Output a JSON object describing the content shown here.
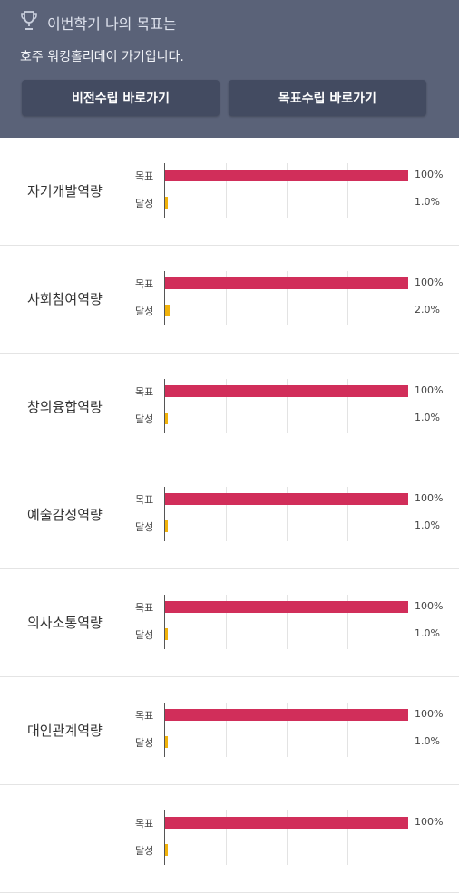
{
  "header": {
    "title": "이번학기 나의 목표는",
    "goal": "호주 워킹홀리데이 가기입니다.",
    "buttons": {
      "vision": "비전수립 바로가기",
      "goal": "목표수립 바로가기"
    },
    "icon": "trophy-icon",
    "colors": {
      "bg": "#5a6278",
      "button": "#434b61"
    }
  },
  "chart_colors": {
    "goal": "#d12e5a",
    "achieved": "#f1b20a"
  },
  "chart_data": {
    "type": "bar",
    "orientation": "horizontal",
    "series_labels": [
      "목표",
      "달성"
    ],
    "xlim": [
      0,
      100
    ],
    "competencies": [
      {
        "name": "자기개발역량",
        "goal": 100,
        "achieved": 1.0,
        "goal_label": "100%",
        "achieved_label": "1.0%"
      },
      {
        "name": "사회참여역량",
        "goal": 100,
        "achieved": 2.0,
        "goal_label": "100%",
        "achieved_label": "2.0%"
      },
      {
        "name": "창의융합역량",
        "goal": 100,
        "achieved": 1.0,
        "goal_label": "100%",
        "achieved_label": "1.0%"
      },
      {
        "name": "예술감성역량",
        "goal": 100,
        "achieved": 1.0,
        "goal_label": "100%",
        "achieved_label": "1.0%"
      },
      {
        "name": "의사소통역량",
        "goal": 100,
        "achieved": 1.0,
        "goal_label": "100%",
        "achieved_label": "1.0%"
      },
      {
        "name": "대인관계역량",
        "goal": 100,
        "achieved": 1.0,
        "goal_label": "100%",
        "achieved_label": "1.0%"
      },
      {
        "name": "",
        "goal": 100,
        "achieved": 1.0,
        "goal_label": "100%",
        "achieved_label": ""
      }
    ]
  }
}
